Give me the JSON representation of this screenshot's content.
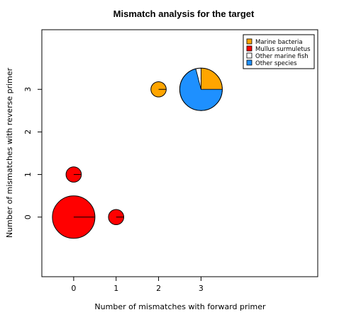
{
  "chart_data": {
    "type": "scatter-pie",
    "title": "Mismatch analysis for the target",
    "xlabel": "Number of mismatches with forward primer",
    "ylabel": "Number of mismatches with reverse primer",
    "xlim": [
      -0.75,
      5.75
    ],
    "ylim": [
      -1.4,
      4.4
    ],
    "x_ticks": [
      0,
      1,
      2,
      3
    ],
    "y_ticks": [
      0,
      1,
      2,
      3
    ],
    "legend_position": "top-right",
    "series": [
      {
        "name": "Marine bacteria",
        "color": "#FFA500"
      },
      {
        "name": "Mullus surmuletus",
        "color": "#FF0000"
      },
      {
        "name": "Other marine fish",
        "color": "#FFFFFF"
      },
      {
        "name": "Other species",
        "color": "#1E90FF"
      }
    ],
    "points": [
      {
        "x": 0,
        "y": 0,
        "size": 1.0,
        "fractions": [
          0,
          1,
          0,
          0
        ]
      },
      {
        "x": 1,
        "y": 0,
        "size": 0.2,
        "fractions": [
          0,
          1,
          0,
          0
        ]
      },
      {
        "x": 0,
        "y": 1,
        "size": 0.2,
        "fractions": [
          0,
          1,
          0,
          0
        ]
      },
      {
        "x": 2,
        "y": 3,
        "size": 0.2,
        "fractions": [
          1,
          0,
          0,
          0
        ]
      },
      {
        "x": 3,
        "y": 3,
        "size": 1.0,
        "fractions": [
          0.25,
          0,
          0.04,
          0.71
        ]
      }
    ]
  }
}
